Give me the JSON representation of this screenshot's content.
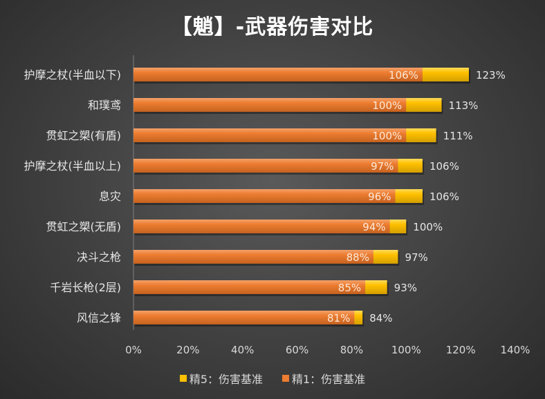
{
  "chart_data": {
    "type": "bar",
    "orientation": "horizontal",
    "title": "【魈】-武器伤害对比",
    "categories": [
      "护摩之杖(半血以下)",
      "和璞鸢",
      "贯虹之槊(有盾)",
      "护摩之杖(半血以上)",
      "息灾",
      "贯虹之槊(无盾)",
      "决斗之枪",
      "千岩长枪(2层)",
      "风信之锋"
    ],
    "series": [
      {
        "name": "精5：伤害基准",
        "color": "#ffc000",
        "values": [
          123,
          113,
          111,
          106,
          106,
          100,
          97,
          93,
          84
        ],
        "labels": [
          "123%",
          "113%",
          "111%",
          "106%",
          "106%",
          "100%",
          "97%",
          "93%",
          "84%"
        ]
      },
      {
        "name": "精1：伤害基准",
        "color": "#ed7d31",
        "values": [
          106,
          100,
          100,
          97,
          96,
          94,
          88,
          85,
          81
        ],
        "labels": [
          "106%",
          "100%",
          "100%",
          "97%",
          "96%",
          "94%",
          "88%",
          "85%",
          "81%"
        ]
      }
    ],
    "xlim": [
      0,
      140
    ],
    "xticks": [
      "0%",
      "20%",
      "40%",
      "60%",
      "80%",
      "100%",
      "120%",
      "140%"
    ],
    "legend_position": "bottom",
    "grid": false
  }
}
